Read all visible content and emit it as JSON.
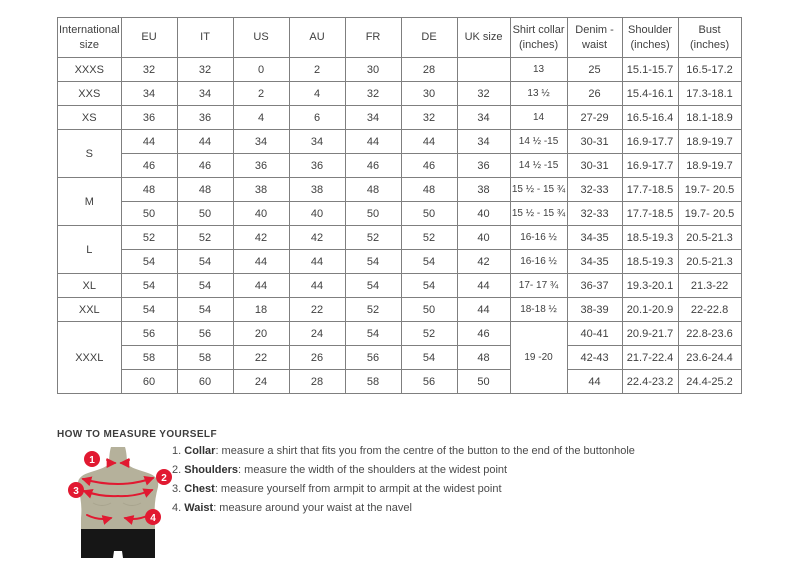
{
  "colors": {
    "accent_red": "#e11931",
    "table_border": "#7f7f7f",
    "text": "#404040",
    "mannequin_body": "#b5b19b",
    "mannequin_shorts": "#161616"
  },
  "table": {
    "headers": [
      "International size",
      "EU",
      "IT",
      "US",
      "AU",
      "FR",
      "DE",
      "UK size",
      "Shirt collar (inches)",
      "Denim - waist",
      "Shoulder (inches)",
      "Bust (inches)"
    ],
    "rows": [
      {
        "size": "XXXS",
        "sizeSpan": 1,
        "eu": "32",
        "it": "32",
        "us": "0",
        "au": "2",
        "fr": "30",
        "de": "28",
        "uk": "",
        "collar": "13",
        "collarSpan": 1,
        "denim": "25",
        "shoulder": "15.1-15.7",
        "bust": "16.5-17.2"
      },
      {
        "size": "XXS",
        "sizeSpan": 1,
        "eu": "34",
        "it": "34",
        "us": "2",
        "au": "4",
        "fr": "32",
        "de": "30",
        "uk": "32",
        "collar": "13 ½",
        "collarSpan": 1,
        "denim": "26",
        "shoulder": "15.4-16.1",
        "bust": "17.3-18.1"
      },
      {
        "size": "XS",
        "sizeSpan": 1,
        "eu": "36",
        "it": "36",
        "us": "4",
        "au": "6",
        "fr": "34",
        "de": "32",
        "uk": "34",
        "collar": "14",
        "collarSpan": 1,
        "denim": "27-29",
        "shoulder": "16.5-16.4",
        "bust": "18.1-18.9"
      },
      {
        "size": "S",
        "sizeSpan": 2,
        "eu": "44",
        "it": "44",
        "us": "34",
        "au": "34",
        "fr": "44",
        "de": "44",
        "uk": "34",
        "collar": "14 ½ -15",
        "collarSpan": 1,
        "denim": "30-31",
        "shoulder": "16.9-17.7",
        "bust": "18.9-19.7"
      },
      {
        "eu": "46",
        "it": "46",
        "us": "36",
        "au": "36",
        "fr": "46",
        "de": "46",
        "uk": "36",
        "collar": "14 ½ -15",
        "collarSpan": 1,
        "denim": "30-31",
        "shoulder": "16.9-17.7",
        "bust": "18.9-19.7"
      },
      {
        "size": "M",
        "sizeSpan": 2,
        "eu": "48",
        "it": "48",
        "us": "38",
        "au": "38",
        "fr": "48",
        "de": "48",
        "uk": "38",
        "collar": "15 ½ - 15 ¾",
        "collarSpan": 1,
        "denim": "32-33",
        "shoulder": "17.7-18.5",
        "bust": "19.7- 20.5"
      },
      {
        "eu": "50",
        "it": "50",
        "us": "40",
        "au": "40",
        "fr": "50",
        "de": "50",
        "uk": "40",
        "collar": "15 ½ - 15 ¾",
        "collarSpan": 1,
        "denim": "32-33",
        "shoulder": "17.7-18.5",
        "bust": "19.7- 20.5"
      },
      {
        "size": "L",
        "sizeSpan": 2,
        "eu": "52",
        "it": "52",
        "us": "42",
        "au": "42",
        "fr": "52",
        "de": "52",
        "uk": "40",
        "collar": "16-16 ½",
        "collarSpan": 1,
        "denim": "34-35",
        "shoulder": "18.5-19.3",
        "bust": "20.5-21.3"
      },
      {
        "eu": "54",
        "it": "54",
        "us": "44",
        "au": "44",
        "fr": "54",
        "de": "54",
        "uk": "42",
        "collar": "16-16 ½",
        "collarSpan": 1,
        "denim": "34-35",
        "shoulder": "18.5-19.3",
        "bust": "20.5-21.3"
      },
      {
        "size": "XL",
        "sizeSpan": 1,
        "eu": "54",
        "it": "54",
        "us": "44",
        "au": "44",
        "fr": "54",
        "de": "54",
        "uk": "44",
        "collar": "17- 17 ¾",
        "collarSpan": 1,
        "denim": "36-37",
        "shoulder": "19.3-20.1",
        "bust": "21.3-22"
      },
      {
        "size": "XXL",
        "sizeSpan": 1,
        "eu": "54",
        "it": "54",
        "us": "18",
        "au": "22",
        "fr": "52",
        "de": "50",
        "uk": "44",
        "collar": "18-18 ½",
        "collarSpan": 1,
        "denim": "38-39",
        "shoulder": "20.1-20.9",
        "bust": "22-22.8"
      },
      {
        "size": "XXXL",
        "sizeSpan": 3,
        "eu": "56",
        "it": "56",
        "us": "20",
        "au": "24",
        "fr": "54",
        "de": "52",
        "uk": "46",
        "collar": "19 -20",
        "collarSpan": 3,
        "denim": "40-41",
        "shoulder": "20.9-21.7",
        "bust": "22.8-23.6"
      },
      {
        "eu": "58",
        "it": "58",
        "us": "22",
        "au": "26",
        "fr": "56",
        "de": "54",
        "uk": "48",
        "denim": "42-43",
        "shoulder": "21.7-22.4",
        "bust": "23.6-24.4"
      },
      {
        "eu": "60",
        "it": "60",
        "us": "24",
        "au": "28",
        "fr": "58",
        "de": "56",
        "uk": "50",
        "denim": "44",
        "shoulder": "22.4-23.2",
        "bust": "24.4-25.2"
      }
    ]
  },
  "measure": {
    "title": "HOW TO MEASURE YOURSELF",
    "steps": [
      {
        "num": "1",
        "prefix": "1.",
        "label": "Collar",
        "rest": ": measure a shirt that fits you from the centre of the button to the end of the buttonhole"
      },
      {
        "num": "2",
        "prefix": "2.",
        "label": "Shoulders",
        "rest": ": measure the width of the shoulders at the widest point"
      },
      {
        "num": "3",
        "prefix": "3.",
        "label": "Chest",
        "rest": ": measure yourself from armpit to armpit at the widest point"
      },
      {
        "num": "4",
        "prefix": "4.",
        "label": "Waist",
        "rest": ": measure around your waist at the navel"
      }
    ]
  }
}
